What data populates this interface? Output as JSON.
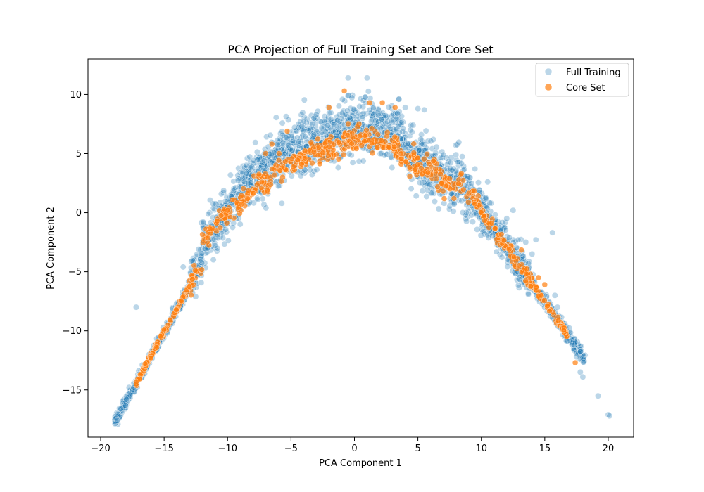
{
  "chart_data": {
    "type": "scatter",
    "title": "PCA Projection of Full Training Set and Core Set",
    "xlabel": "PCA Component 1",
    "ylabel": "PCA Component 2",
    "xlim": [
      -21,
      22
    ],
    "ylim": [
      -19,
      13
    ],
    "xticks": [
      -20,
      -15,
      -10,
      -5,
      0,
      5,
      10,
      15,
      20
    ],
    "yticks": [
      -15,
      -10,
      -5,
      0,
      5,
      10
    ],
    "grid": false,
    "legend": {
      "position": "top-right",
      "entries": [
        "Full Training",
        "Core Set"
      ]
    },
    "series": [
      {
        "name": "Full Training",
        "color": "#1f77b4",
        "opacity": 0.3,
        "description": "dense parabolic band",
        "outliers": [
          [
            -0.5,
            11.4
          ],
          [
            1.0,
            11.4
          ],
          [
            -17.2,
            -8.0
          ],
          [
            15.6,
            -1.7
          ],
          [
            12.5,
            0.2
          ],
          [
            12.9,
            -2.3
          ],
          [
            14.3,
            -2.3
          ],
          [
            19.2,
            -15.5
          ],
          [
            20.0,
            -17.1
          ],
          [
            20.1,
            -17.2
          ],
          [
            17.5,
            -12.2
          ],
          [
            17.8,
            -13.5
          ],
          [
            18.0,
            -13.9
          ],
          [
            7.0,
            4.9
          ],
          [
            8.0,
            4.9
          ],
          [
            9.5,
            3.7
          ],
          [
            10.5,
            2.6
          ],
          [
            4.0,
            8.9
          ],
          [
            5.0,
            8.8
          ],
          [
            5.5,
            8.7
          ],
          [
            3.5,
            9.6
          ],
          [
            -3.0,
            8.3
          ],
          [
            -13.5,
            -4.6
          ],
          [
            14.0,
            -3.5
          ],
          [
            13.5,
            -2.5
          ],
          [
            12.0,
            -0.5
          ],
          [
            -18.7,
            -17.6
          ],
          [
            16.0,
            -8.0
          ],
          [
            15.8,
            -7.0
          ],
          [
            16.5,
            -9.5
          ]
        ]
      },
      {
        "name": "Core Set",
        "color": "#ff7f0e",
        "opacity": 0.7,
        "description": "subset along the same curve",
        "outliers": [
          [
            -0.8,
            10.3
          ],
          [
            1.2,
            9.3
          ],
          [
            2.2,
            9.3
          ],
          [
            3.2,
            8.9
          ],
          [
            -2.0,
            8.9
          ],
          [
            -5.3,
            6.9
          ],
          [
            -6.5,
            5.8
          ],
          [
            -7.0,
            5.0
          ],
          [
            15.0,
            -6.1
          ],
          [
            17.4,
            -12.7
          ],
          [
            -17.2,
            -14.3
          ],
          [
            -16.5,
            -12.8
          ],
          [
            14.5,
            -5.5
          ]
        ]
      }
    ]
  }
}
